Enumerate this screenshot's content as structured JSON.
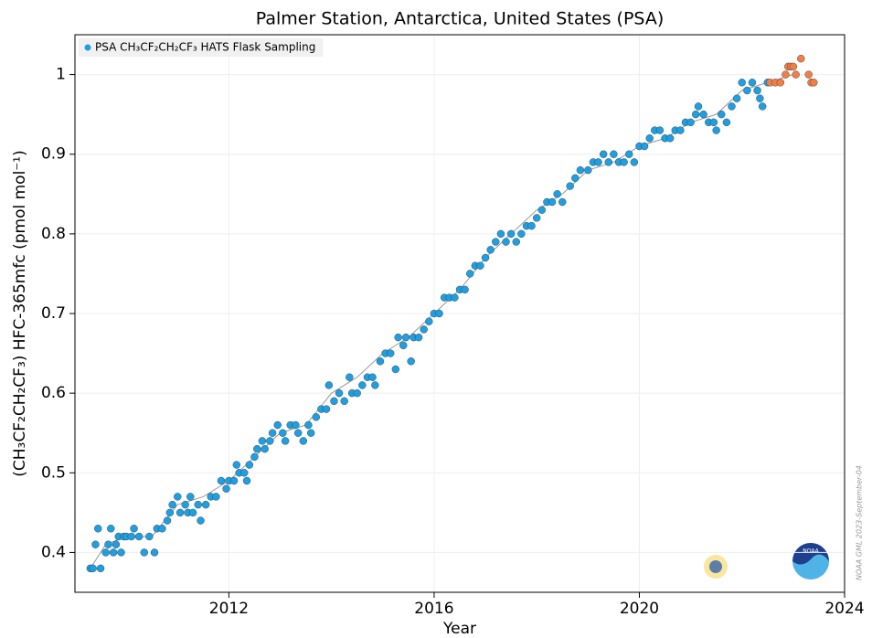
{
  "chart_data": {
    "type": "scatter",
    "title": "Palmer Station, Antarctica, United States (PSA)",
    "x_label": "Year",
    "y_label": "(CH₃CF₂CH₂CF₃) HFC-365mfc (pmol mol⁻¹)",
    "watermark": "NOAA GML 2023-September-04",
    "xlim": [
      2009,
      2024
    ],
    "xticks": [
      2012,
      2016,
      2020,
      2024
    ],
    "ylim": [
      0.35,
      1.05
    ],
    "yticks": [
      0.4,
      0.5,
      0.6,
      0.7,
      0.8,
      0.9,
      1.0
    ],
    "grid": true,
    "legend": "upper left",
    "series": [
      {
        "name": "PSA CH₃CF₂CH₂CF₃ HATS Flask Sampling",
        "color": "#1f9ee0",
        "x": [
          2009.3,
          2009.35,
          2009.4,
          2009.45,
          2009.5,
          2009.6,
          2009.65,
          2009.7,
          2009.75,
          2009.8,
          2009.85,
          2009.9,
          2009.95,
          2010.0,
          2010.1,
          2010.15,
          2010.25,
          2010.35,
          2010.45,
          2010.55,
          2010.6,
          2010.7,
          2010.8,
          2010.85,
          2010.9,
          2011.0,
          2011.05,
          2011.15,
          2011.2,
          2011.25,
          2011.3,
          2011.4,
          2011.45,
          2011.55,
          2011.65,
          2011.75,
          2011.85,
          2011.95,
          2012.0,
          2012.1,
          2012.15,
          2012.2,
          2012.3,
          2012.35,
          2012.4,
          2012.5,
          2012.55,
          2012.65,
          2012.7,
          2012.8,
          2012.85,
          2012.95,
          2013.05,
          2013.1,
          2013.2,
          2013.3,
          2013.35,
          2013.45,
          2013.55,
          2013.6,
          2013.7,
          2013.8,
          2013.9,
          2013.95,
          2014.05,
          2014.15,
          2014.25,
          2014.35,
          2014.4,
          2014.5,
          2014.6,
          2014.7,
          2014.8,
          2014.85,
          2014.95,
          2015.05,
          2015.15,
          2015.25,
          2015.3,
          2015.4,
          2015.45,
          2015.55,
          2015.6,
          2015.7,
          2015.8,
          2015.9,
          2016.0,
          2016.1,
          2016.2,
          2016.3,
          2016.4,
          2016.5,
          2016.6,
          2016.7,
          2016.8,
          2016.9,
          2017.0,
          2017.1,
          2017.2,
          2017.3,
          2017.4,
          2017.5,
          2017.6,
          2017.7,
          2017.8,
          2017.9,
          2018.0,
          2018.1,
          2018.2,
          2018.3,
          2018.4,
          2018.5,
          2018.65,
          2018.75,
          2018.85,
          2019.0,
          2019.1,
          2019.2,
          2019.3,
          2019.4,
          2019.5,
          2019.6,
          2019.7,
          2019.8,
          2019.9,
          2020.0,
          2020.1,
          2020.2,
          2020.3,
          2020.4,
          2020.5,
          2020.6,
          2020.7,
          2020.8,
          2020.9,
          2021.0,
          2021.1,
          2021.15,
          2021.25,
          2021.35,
          2021.45,
          2021.5,
          2021.6,
          2021.7,
          2021.8,
          2021.9,
          2022.0,
          2022.1,
          2022.2,
          2022.3,
          2022.35,
          2022.4,
          2022.5
        ],
        "values": [
          0.38,
          0.38,
          0.41,
          0.43,
          0.38,
          0.4,
          0.41,
          0.43,
          0.4,
          0.41,
          0.42,
          0.4,
          0.42,
          0.42,
          0.42,
          0.43,
          0.42,
          0.4,
          0.42,
          0.4,
          0.43,
          0.43,
          0.44,
          0.45,
          0.46,
          0.47,
          0.45,
          0.46,
          0.45,
          0.47,
          0.45,
          0.46,
          0.44,
          0.46,
          0.47,
          0.47,
          0.49,
          0.48,
          0.49,
          0.49,
          0.51,
          0.5,
          0.5,
          0.49,
          0.51,
          0.52,
          0.53,
          0.54,
          0.53,
          0.54,
          0.55,
          0.56,
          0.55,
          0.54,
          0.56,
          0.56,
          0.55,
          0.54,
          0.56,
          0.55,
          0.57,
          0.58,
          0.58,
          0.61,
          0.59,
          0.6,
          0.59,
          0.62,
          0.6,
          0.6,
          0.61,
          0.62,
          0.62,
          0.61,
          0.64,
          0.65,
          0.65,
          0.63,
          0.67,
          0.66,
          0.67,
          0.64,
          0.67,
          0.67,
          0.68,
          0.69,
          0.7,
          0.7,
          0.72,
          0.72,
          0.72,
          0.73,
          0.73,
          0.75,
          0.76,
          0.76,
          0.77,
          0.78,
          0.79,
          0.8,
          0.79,
          0.8,
          0.79,
          0.8,
          0.81,
          0.81,
          0.82,
          0.83,
          0.84,
          0.84,
          0.85,
          0.84,
          0.86,
          0.87,
          0.88,
          0.88,
          0.89,
          0.89,
          0.9,
          0.89,
          0.9,
          0.89,
          0.89,
          0.9,
          0.89,
          0.91,
          0.91,
          0.92,
          0.93,
          0.93,
          0.92,
          0.92,
          0.93,
          0.93,
          0.94,
          0.94,
          0.95,
          0.96,
          0.95,
          0.94,
          0.94,
          0.93,
          0.95,
          0.94,
          0.96,
          0.97,
          0.99,
          0.98,
          0.99,
          0.98,
          0.97,
          0.96,
          0.99
        ]
      },
      {
        "color": "#f07f45",
        "x": [
          2022.55,
          2022.65,
          2022.75,
          2022.85,
          2022.9,
          2022.95,
          2023.0,
          2023.05,
          2023.15,
          2023.3,
          2023.35,
          2023.4
        ],
        "values": [
          0.99,
          0.99,
          0.99,
          1.0,
          1.01,
          1.01,
          1.01,
          1.0,
          1.02,
          1.0,
          0.99,
          0.99
        ]
      }
    ],
    "trend": {
      "color": "#999999",
      "x": [
        2009.3,
        2009.6,
        2010.0,
        2010.5,
        2011.0,
        2011.5,
        2012.0,
        2012.5,
        2013.0,
        2013.5,
        2014.0,
        2014.5,
        2015.0,
        2015.5,
        2016.0,
        2016.5,
        2017.0,
        2017.5,
        2018.0,
        2018.5,
        2019.0,
        2019.5,
        2020.0,
        2020.5,
        2021.0,
        2021.5,
        2022.0,
        2022.5,
        2023.0
      ],
      "values": [
        0.38,
        0.41,
        0.42,
        0.42,
        0.46,
        0.47,
        0.49,
        0.52,
        0.55,
        0.56,
        0.6,
        0.62,
        0.65,
        0.67,
        0.7,
        0.73,
        0.77,
        0.8,
        0.83,
        0.85,
        0.88,
        0.89,
        0.91,
        0.92,
        0.94,
        0.95,
        0.98,
        0.99,
        1.0
      ]
    }
  }
}
